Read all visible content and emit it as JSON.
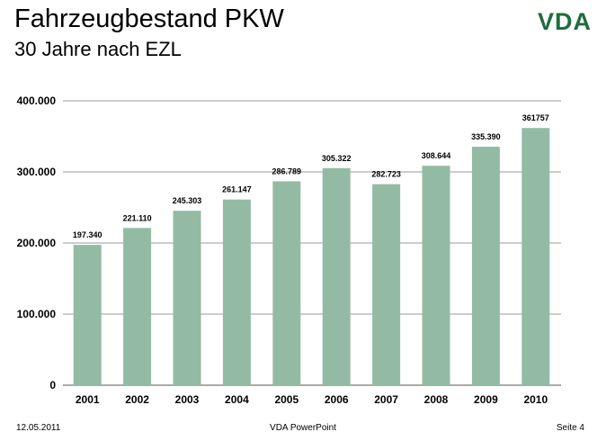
{
  "header": {
    "title": "Fahrzeugbestand PKW",
    "subtitle": "30 Jahre nach EZL",
    "logo_text": "VDA",
    "logo_color": "#1e6e3c"
  },
  "chart_data": {
    "type": "bar",
    "categories": [
      "2001",
      "2002",
      "2003",
      "2004",
      "2005",
      "2006",
      "2007",
      "2008",
      "2009",
      "2010"
    ],
    "values": [
      197340,
      221110,
      245303,
      261147,
      286789,
      305322,
      282723,
      308644,
      335390,
      361757
    ],
    "data_labels": [
      "197.340",
      "221.110",
      "245.303",
      "261.147",
      "286.789",
      "305.322",
      "282.723",
      "308.644",
      "335.390",
      "361757"
    ],
    "title": "",
    "xlabel": "",
    "ylabel": "",
    "ylim": [
      0,
      400000
    ],
    "yticks": [
      0,
      100000,
      200000,
      300000,
      400000
    ],
    "ytick_labels": [
      "0",
      "100.000",
      "200.000",
      "300.000",
      "400.000"
    ],
    "grid": true,
    "legend": "none",
    "bar_color": "#93bba3"
  },
  "footer": {
    "date": "12.05.2011",
    "center": "VDA PowerPoint",
    "page": "Seite 4"
  }
}
